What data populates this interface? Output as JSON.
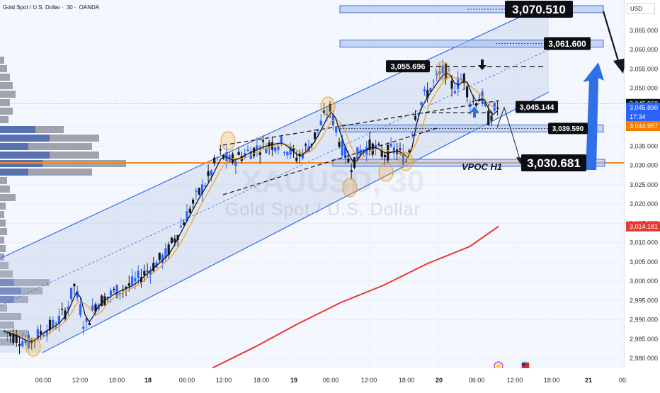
{
  "chart_title": {
    "symbol": "Gold Spot / U.S. Dollar",
    "interval": "30",
    "source": "OANDA"
  },
  "watermark": {
    "symbol": "XAUUSD, 30",
    "name": "Gold Spot / U.S. Dollar"
  },
  "currency_button": "USD",
  "colors": {
    "background": "#ffffff",
    "bull_candle": "#2962ff",
    "bear_candle": "#131722",
    "ma_fast": "#131722",
    "ma_slow": "#f5a623",
    "ma_long": "#e53935",
    "vpoc_line": "#ef8a2a",
    "channel_fill": "#dbe2f0",
    "annotation_arrow": "#2f6fe8",
    "zone_fill": "#c6d3ee",
    "zone_border": "#3f6fd8"
  },
  "chart_data": {
    "type": "candlestick",
    "y_axis": {
      "range": [
        2976.0,
        3075.0
      ],
      "ticks": [
        "3,065.000",
        "3,060.000",
        "3,055.000",
        "3,050.000",
        "3,045.000",
        "3,040.000",
        "3,035.000",
        "3,030.000",
        "3,025.000",
        "3,020.000",
        "3,015.000",
        "3,010.000",
        "3,005.000",
        "3,000.000",
        "2,995.000",
        "2,990.000",
        "2,985.000",
        "2,980.000"
      ]
    },
    "x_axis": {
      "ticks": [
        {
          "label": "06:00",
          "bold": false
        },
        {
          "label": "12:00",
          "bold": false
        },
        {
          "label": "18:00",
          "bold": false
        },
        {
          "label": "18",
          "bold": true
        },
        {
          "label": "06:00",
          "bold": false
        },
        {
          "label": "12:00",
          "bold": false
        },
        {
          "label": "18:00",
          "bold": false
        },
        {
          "label": "19",
          "bold": true
        },
        {
          "label": "06:00",
          "bold": false
        },
        {
          "label": "12:00",
          "bold": false
        },
        {
          "label": "18:00",
          "bold": false
        },
        {
          "label": "20",
          "bold": true
        },
        {
          "label": "06:00",
          "bold": false
        },
        {
          "label": "12:00",
          "bold": false
        },
        {
          "label": "18:00",
          "bold": false
        },
        {
          "label": "21",
          "bold": true
        },
        {
          "label": "06:",
          "bold": false
        }
      ]
    },
    "price_tags": [
      {
        "label": "3,045.962",
        "value": 3045.962,
        "style": "dark"
      },
      {
        "label": "3,045.890",
        "value": 3045.0,
        "style": "blue"
      },
      {
        "label": "17:34",
        "value": 3042.6,
        "style": "blue"
      },
      {
        "label": "3,044.957",
        "value": 3040.2,
        "style": "orange"
      },
      {
        "label": "3,014.181",
        "value": 3014.181,
        "style": "red"
      }
    ],
    "levels": [
      {
        "label": "3,070.510",
        "value": 3070.51,
        "size": "large"
      },
      {
        "label": "3,061.600",
        "value": 3061.6,
        "size": "medium"
      },
      {
        "label": "3,055.696",
        "value": 3055.696,
        "size": "small"
      },
      {
        "label": "3,045.144",
        "value": 3045.144,
        "size": "small"
      },
      {
        "label": "3,039.590",
        "value": 3039.59,
        "size": "small"
      },
      {
        "label": "3,030.681",
        "value": 3030.681,
        "size": "large"
      }
    ],
    "annotations": {
      "vpoc_label": "VPOC H1",
      "vpoc_value": 3030.681
    },
    "ma_long_series": [
      {
        "x": 0.0,
        "y": 2977.5
      },
      {
        "x": 0.15,
        "y": 2983.0
      },
      {
        "x": 0.3,
        "y": 2989.0
      },
      {
        "x": 0.45,
        "y": 2994.5
      },
      {
        "x": 0.6,
        "y": 2999.0
      },
      {
        "x": 0.75,
        "y": 3004.5
      },
      {
        "x": 0.9,
        "y": 3009.0
      },
      {
        "x": 1.0,
        "y": 3014.2
      }
    ],
    "markers": [
      "lightning-icon",
      "us-flag-icon"
    ]
  }
}
